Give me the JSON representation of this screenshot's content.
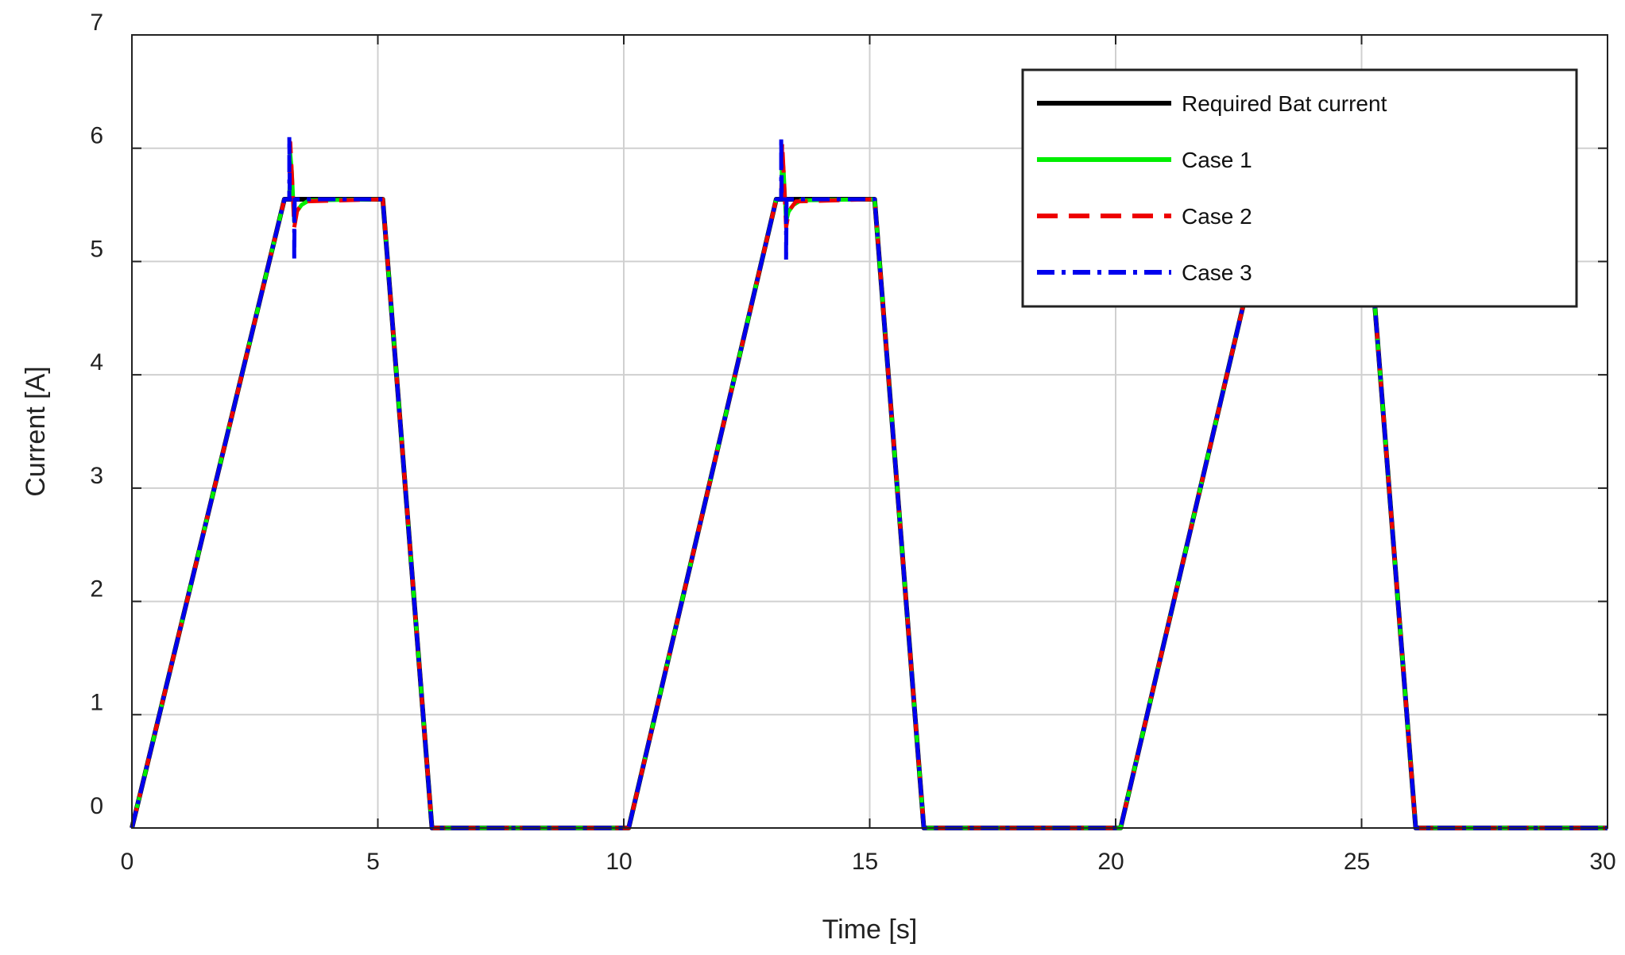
{
  "chart_data": {
    "type": "line",
    "title": "",
    "xlabel": "Time [s]",
    "ylabel": "Current [A]",
    "xlim": [
      0,
      30
    ],
    "ylim": [
      0,
      7
    ],
    "xticks": [
      0,
      5,
      10,
      15,
      20,
      25,
      30
    ],
    "yticks": [
      0,
      1,
      2,
      3,
      4,
      5,
      6,
      7
    ],
    "grid": true,
    "legend_position": "top-right",
    "series": [
      {
        "name": "Required Bat current",
        "color": "#000000",
        "style": "solid",
        "x": [
          0,
          3.1,
          5.1,
          6.1,
          10.1,
          13.1,
          15.1,
          16.1,
          20.1,
          23.1,
          25.1,
          26.1,
          30
        ],
        "y": [
          0,
          5.55,
          5.55,
          0,
          0,
          5.55,
          5.55,
          0,
          0,
          5.55,
          5.55,
          0,
          0
        ]
      },
      {
        "name": "Case 1",
        "color": "#00ee00",
        "style": "solid",
        "x": [
          0,
          3.1,
          3.2,
          3.22,
          3.25,
          3.3,
          3.35,
          3.45,
          3.6,
          5.1,
          6.1,
          10.1,
          13.1,
          13.2,
          13.22,
          13.25,
          13.3,
          13.35,
          13.45,
          13.6,
          15.1,
          16.1,
          20.1,
          23.1,
          25.1,
          26.1,
          30
        ],
        "y": [
          0,
          5.55,
          5.55,
          5.95,
          5.8,
          5.35,
          5.44,
          5.5,
          5.54,
          5.55,
          0,
          0,
          5.55,
          5.55,
          5.95,
          5.8,
          5.35,
          5.44,
          5.5,
          5.54,
          5.55,
          0,
          0,
          5.55,
          5.55,
          0,
          0
        ]
      },
      {
        "name": "Case 2",
        "color": "#ee0000",
        "style": "dashed",
        "x": [
          0,
          3.1,
          3.2,
          3.22,
          3.26,
          3.3,
          3.36,
          3.5,
          5.1,
          6.1,
          10.1,
          13.1,
          13.2,
          13.22,
          13.26,
          13.3,
          13.36,
          13.5,
          15.1,
          16.1,
          20.1,
          23.1,
          25.1,
          26.1,
          30
        ],
        "y": [
          0,
          5.55,
          5.55,
          6.05,
          5.7,
          5.3,
          5.45,
          5.53,
          5.55,
          0,
          0,
          5.55,
          5.55,
          6.05,
          5.7,
          5.3,
          5.45,
          5.53,
          5.55,
          0,
          0,
          5.55,
          5.55,
          0,
          0
        ]
      },
      {
        "name": "Case 3",
        "color": "#0000ee",
        "style": "dashdot",
        "x": [
          0,
          3.1,
          3.2,
          3.2,
          3.21,
          3.3,
          3.3,
          3.31,
          5.1,
          6.1,
          10.1,
          13.1,
          13.2,
          13.2,
          13.21,
          13.3,
          13.3,
          13.31,
          15.1,
          16.1,
          20.1,
          23.1,
          25.1,
          26.1,
          30
        ],
        "y": [
          0,
          5.55,
          5.55,
          6.1,
          5.55,
          5.55,
          5.0,
          5.55,
          5.55,
          0,
          0,
          5.55,
          5.55,
          6.1,
          5.55,
          5.55,
          5.0,
          5.55,
          5.55,
          0,
          0,
          5.55,
          5.55,
          0,
          0
        ]
      }
    ]
  }
}
